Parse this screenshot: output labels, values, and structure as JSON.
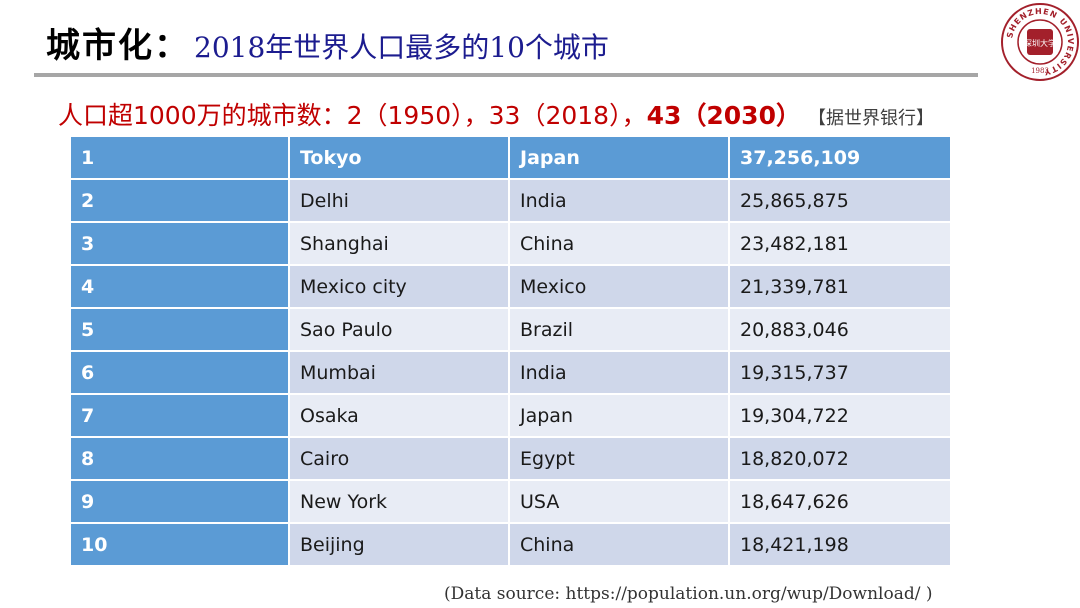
{
  "title": {
    "main": "城市化：",
    "sub": "2018年世界人口最多的10个城市"
  },
  "logo": {
    "ring_text": "SHENZHEN UNIVERSITY",
    "year": "1983",
    "seal_text": "深圳大学",
    "color": "#a3202b"
  },
  "subtitle": {
    "prefix": "人口超1000万的城市数：2（1950），33（2018），",
    "highlight": "43（2030）",
    "source_note": "【据世界银行】"
  },
  "table": {
    "rows": [
      {
        "rank": "1",
        "city": "Tokyo",
        "country": "Japan",
        "population": "37,256,109"
      },
      {
        "rank": "2",
        "city": "Delhi",
        "country": "India",
        "population": "25,865,875"
      },
      {
        "rank": "3",
        "city": "Shanghai",
        "country": "China",
        "population": "23,482,181"
      },
      {
        "rank": "4",
        "city": "Mexico city",
        "country": "Mexico",
        "population": "21,339,781"
      },
      {
        "rank": "5",
        "city": "Sao Paulo",
        "country": "Brazil",
        "population": "20,883,046"
      },
      {
        "rank": "6",
        "city": "Mumbai",
        "country": "India",
        "population": "19,315,737"
      },
      {
        "rank": "7",
        "city": "Osaka",
        "country": "Japan",
        "population": "19,304,722"
      },
      {
        "rank": "8",
        "city": "Cairo",
        "country": "Egypt",
        "population": "18,820,072"
      },
      {
        "rank": "9",
        "city": "New York",
        "country": "USA",
        "population": "18,647,626"
      },
      {
        "rank": "10",
        "city": "Beijing",
        "country": "China",
        "population": "18,421,198"
      }
    ]
  },
  "data_source": "(Data source:  https://population.un.org/wup/Download/ )",
  "colors": {
    "header_blue": "#5b9bd5",
    "row_dark": "#cfd7ea",
    "row_light": "#e8ecf5",
    "subtitle_red": "#c00000",
    "title_blue": "#1c1c8f"
  }
}
